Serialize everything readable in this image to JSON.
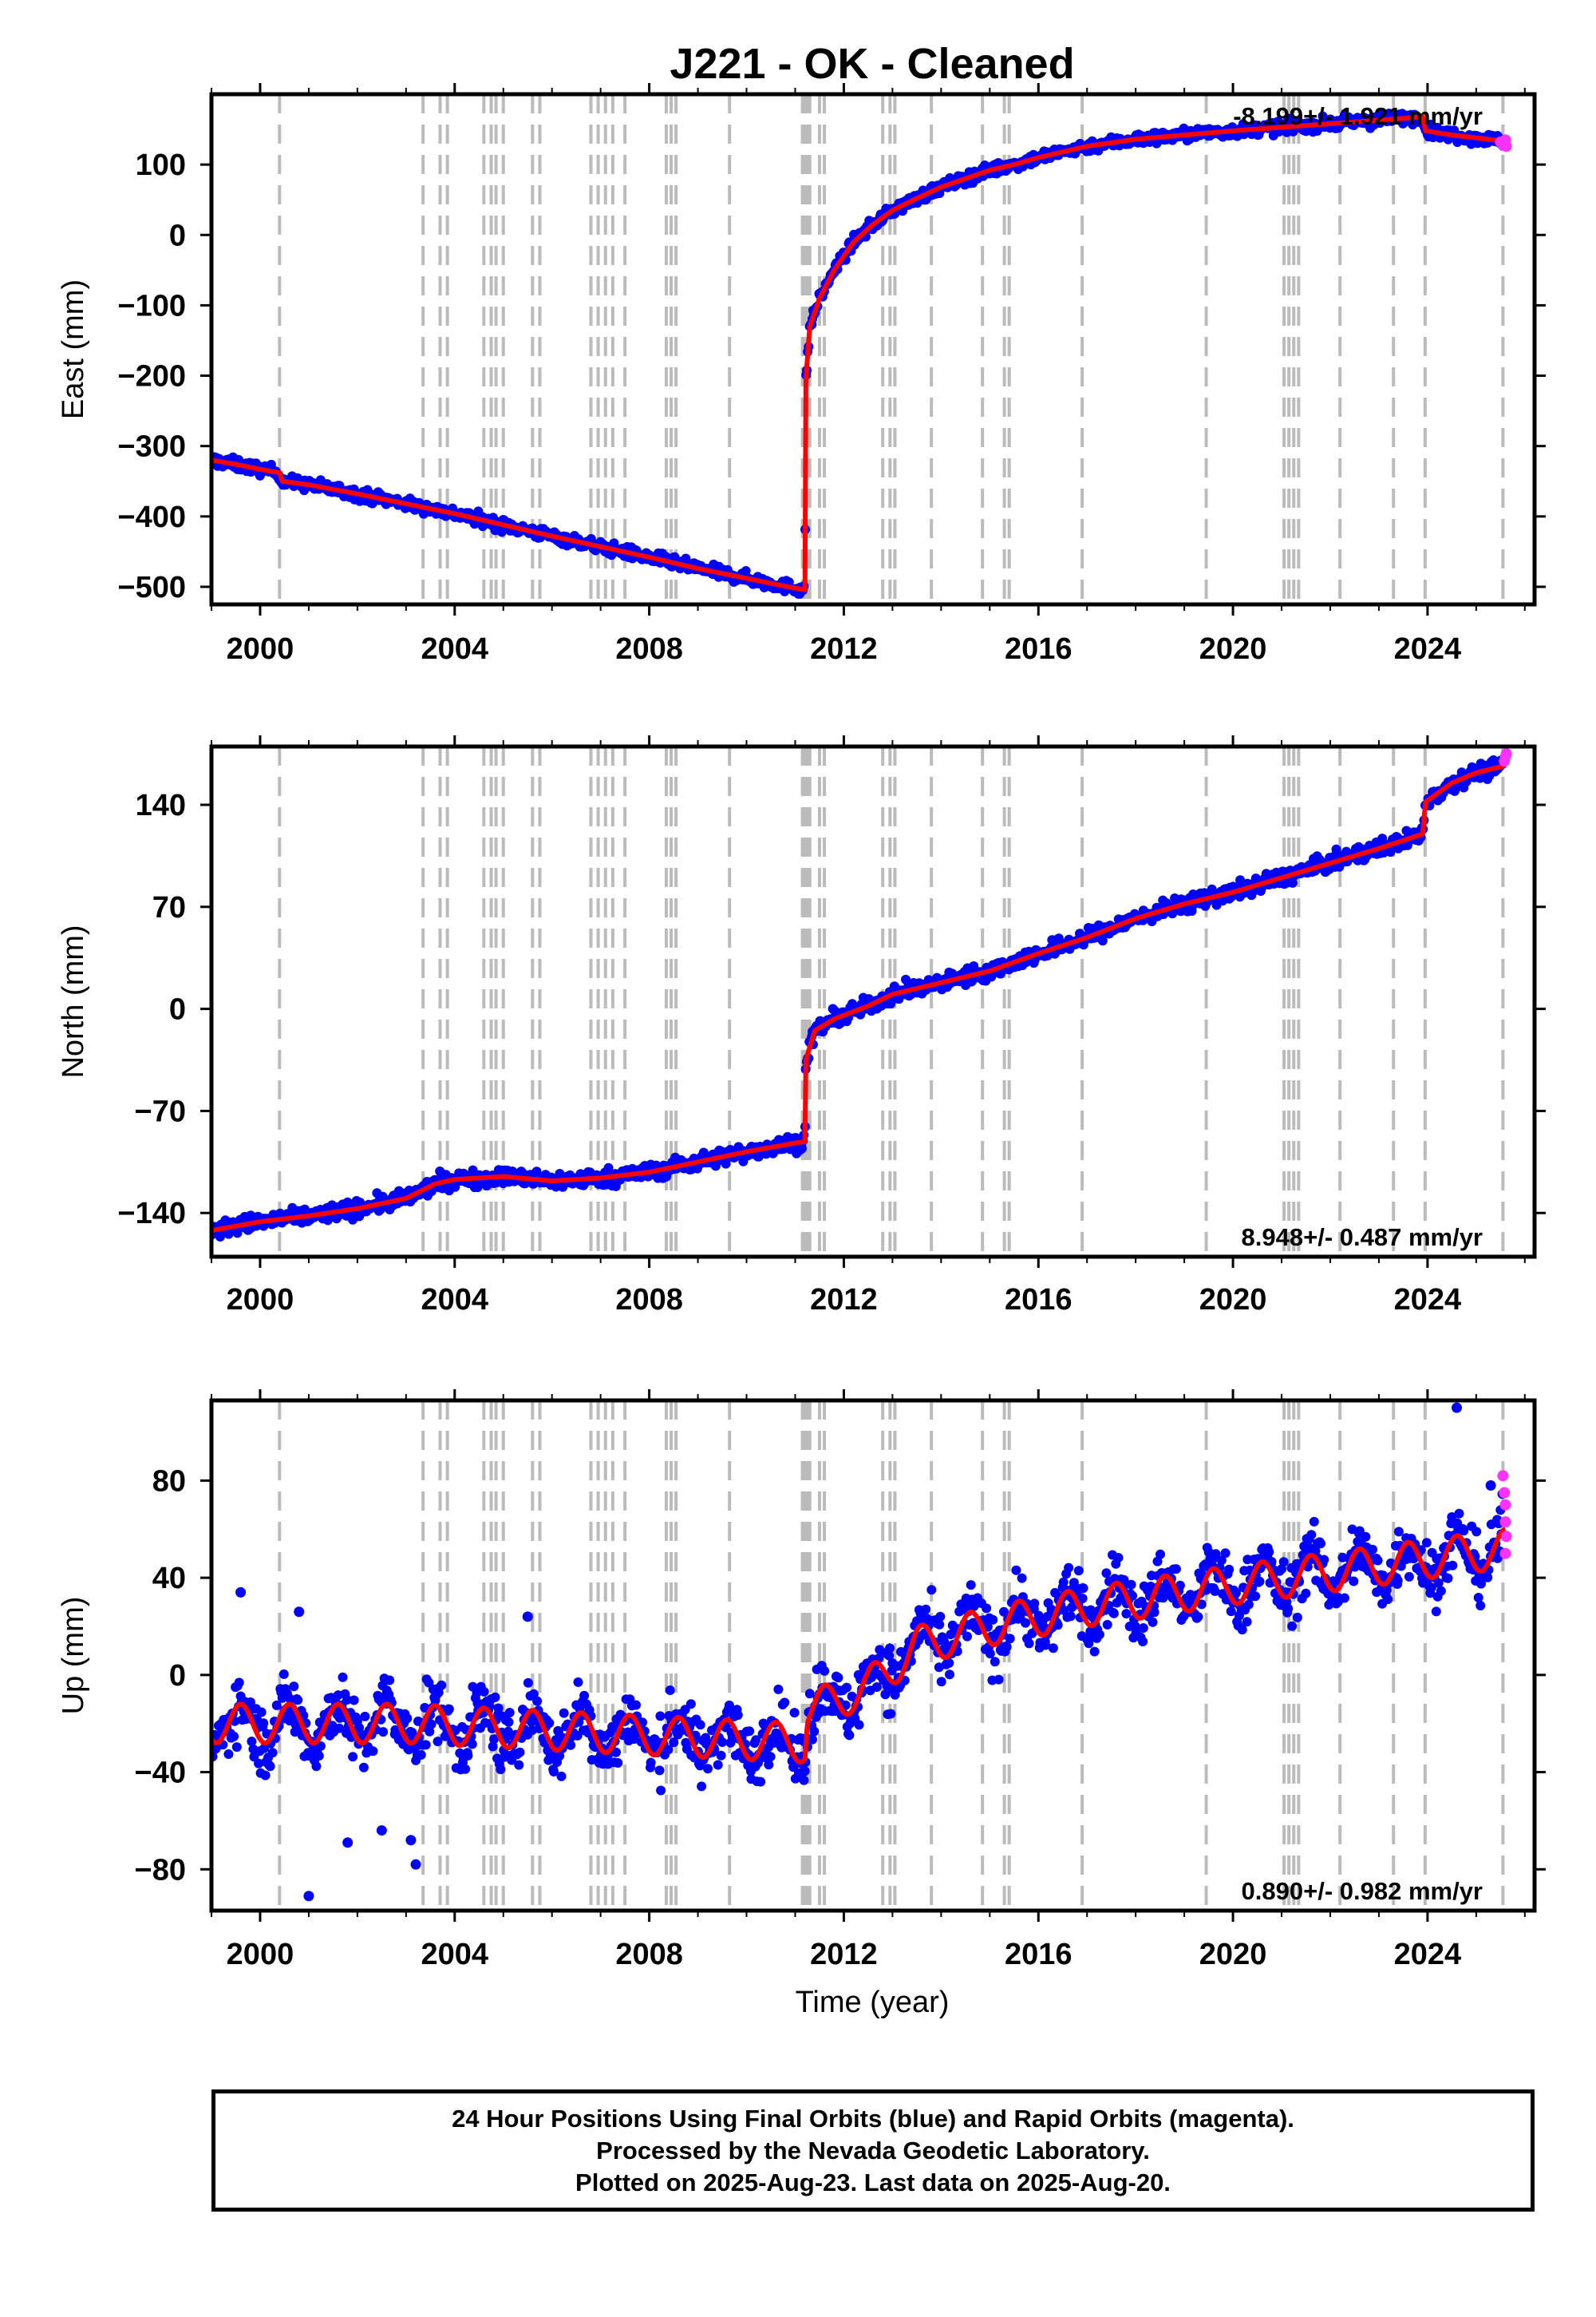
{
  "chart_data": {
    "type": "scatter",
    "title": "J221  - OK - Cleaned",
    "xlabel": "Time (year)",
    "x_ticks": [
      2000,
      2004,
      2008,
      2012,
      2016,
      2020,
      2024
    ],
    "xlim": [
      1999.0,
      2026.2
    ],
    "series_legend": [
      "24 Hour Positions Using Final Orbits (blue)",
      "Rapid Orbits (magenta)"
    ],
    "colors": {
      "final": "#0000ff",
      "rapid": "#ff33ff",
      "model": "#ff0000",
      "event_lines": "#bbbbbb"
    },
    "event_lines": [
      2000.4,
      2003.35,
      2003.7,
      2003.85,
      2004.6,
      2004.75,
      2004.85,
      2005.0,
      2005.6,
      2005.75,
      2006.8,
      2006.95,
      2007.1,
      2007.25,
      2007.5,
      2008.35,
      2008.45,
      2008.55,
      2009.65,
      2011.15,
      2011.2,
      2011.25,
      2011.3,
      2011.5,
      2011.6,
      2012.8,
      2012.95,
      2013.05,
      2013.8,
      2014.85,
      2015.3,
      2015.4,
      2016.9,
      2019.45,
      2021.05,
      2021.15,
      2021.25,
      2021.35,
      2022.2,
      2023.3,
      2023.95,
      2025.55
    ],
    "panels": [
      {
        "name": "east",
        "ylabel": "East (mm)",
        "ylim": [
          -525,
          200
        ],
        "y_ticks": [
          -500,
          -400,
          -300,
          -200,
          -100,
          0,
          100
        ],
        "y_tick_labels": [
          "−500",
          "−400",
          "−300",
          "−200",
          "−100",
          "0",
          "100"
        ],
        "rate_text": "-8.199+/- 1.921 mm/yr",
        "rate_position": "top-right",
        "scatter_spread_mm": 6,
        "model_points": [
          [
            1999.0,
            -320
          ],
          [
            1999.5,
            -326
          ],
          [
            2000.0,
            -333
          ],
          [
            2000.4,
            -338
          ],
          [
            2000.45,
            -350
          ],
          [
            2001.0,
            -355
          ],
          [
            2002.0,
            -368
          ],
          [
            2003.0,
            -382
          ],
          [
            2004.0,
            -396
          ],
          [
            2005.0,
            -412
          ],
          [
            2006.0,
            -428
          ],
          [
            2007.0,
            -443
          ],
          [
            2008.0,
            -458
          ],
          [
            2009.0,
            -474
          ],
          [
            2010.0,
            -488
          ],
          [
            2011.0,
            -502
          ],
          [
            2011.2,
            -504
          ],
          [
            2011.22,
            -205
          ],
          [
            2011.3,
            -130
          ],
          [
            2011.5,
            -90
          ],
          [
            2011.8,
            -50
          ],
          [
            2012.2,
            -10
          ],
          [
            2012.6,
            15
          ],
          [
            2013.0,
            35
          ],
          [
            2013.5,
            52
          ],
          [
            2014.0,
            68
          ],
          [
            2014.5,
            80
          ],
          [
            2015.0,
            92
          ],
          [
            2015.5,
            100
          ],
          [
            2016.0,
            110
          ],
          [
            2016.5,
            118
          ],
          [
            2017.0,
            126
          ],
          [
            2018.0,
            136
          ],
          [
            2019.0,
            142
          ],
          [
            2020.0,
            148
          ],
          [
            2021.0,
            153
          ],
          [
            2022.0,
            158
          ],
          [
            2023.0,
            163
          ],
          [
            2023.9,
            168
          ],
          [
            2023.96,
            148
          ],
          [
            2024.5,
            142
          ],
          [
            2025.0,
            138
          ],
          [
            2025.6,
            133
          ]
        ],
        "rapid_points": [
          [
            2025.5,
            132
          ],
          [
            2025.55,
            128
          ],
          [
            2025.6,
            135
          ],
          [
            2025.62,
            126
          ],
          [
            2025.58,
            130
          ]
        ]
      },
      {
        "name": "north",
        "ylabel": "North (mm)",
        "ylim": [
          -170,
          180
        ],
        "y_ticks": [
          -140,
          -70,
          0,
          70,
          140
        ],
        "y_tick_labels": [
          "−140",
          "−70",
          "0",
          "70",
          "140"
        ],
        "rate_text": "8.948+/- 0.487 mm/yr",
        "rate_position": "bottom-right",
        "scatter_spread_mm": 4,
        "model_points": [
          [
            1999.0,
            -152
          ],
          [
            2000.0,
            -146
          ],
          [
            2001.0,
            -142
          ],
          [
            2002.0,
            -137
          ],
          [
            2003.0,
            -130
          ],
          [
            2003.6,
            -120
          ],
          [
            2004.0,
            -117
          ],
          [
            2005.0,
            -115
          ],
          [
            2006.0,
            -118
          ],
          [
            2007.0,
            -116
          ],
          [
            2008.0,
            -112
          ],
          [
            2009.0,
            -105
          ],
          [
            2010.0,
            -98
          ],
          [
            2011.0,
            -92
          ],
          [
            2011.2,
            -91
          ],
          [
            2011.22,
            -35
          ],
          [
            2011.4,
            -15
          ],
          [
            2011.8,
            -7
          ],
          [
            2012.5,
            2
          ],
          [
            2013.0,
            10
          ],
          [
            2014.0,
            18
          ],
          [
            2015.0,
            26
          ],
          [
            2016.0,
            38
          ],
          [
            2017.0,
            49
          ],
          [
            2018.0,
            62
          ],
          [
            2019.0,
            72
          ],
          [
            2020.0,
            80
          ],
          [
            2021.0,
            90
          ],
          [
            2022.0,
            100
          ],
          [
            2023.0,
            110
          ],
          [
            2023.9,
            120
          ],
          [
            2023.96,
            142
          ],
          [
            2024.5,
            155
          ],
          [
            2025.0,
            162
          ],
          [
            2025.6,
            167
          ]
        ],
        "rapid_points": [
          [
            2025.58,
            170
          ],
          [
            2025.6,
            173
          ],
          [
            2025.62,
            175
          ]
        ]
      },
      {
        "name": "up",
        "ylabel": "Up (mm)",
        "ylim": [
          -97,
          113
        ],
        "y_ticks": [
          -80,
          -40,
          0,
          40,
          80
        ],
        "y_tick_labels": [
          "−80",
          "−40",
          "0",
          "40",
          "80"
        ],
        "rate_text": "0.890+/- 0.982 mm/yr",
        "rate_position": "bottom-right",
        "scatter_spread_mm": 9,
        "model_trend": [
          [
            1999.0,
            -20
          ],
          [
            2003.0,
            -20
          ],
          [
            2011.2,
            -28
          ],
          [
            2011.25,
            -15
          ],
          [
            2012.5,
            -5
          ],
          [
            2013.5,
            12
          ],
          [
            2015.0,
            20
          ],
          [
            2017.0,
            28
          ],
          [
            2020.0,
            37
          ],
          [
            2023.0,
            45
          ],
          [
            2025.6,
            52
          ]
        ],
        "seasonal_amplitude_mm": 8,
        "outliers": [
          [
            1999.6,
            34
          ],
          [
            2000.8,
            26
          ],
          [
            2001.0,
            -91
          ],
          [
            2001.8,
            -69
          ],
          [
            2002.5,
            -64
          ],
          [
            2003.2,
            -78
          ],
          [
            2003.1,
            -68
          ],
          [
            2005.5,
            24
          ],
          [
            2024.6,
            110
          ],
          [
            2025.3,
            78
          ]
        ],
        "rapid_points": [
          [
            2025.55,
            82
          ],
          [
            2025.58,
            75
          ],
          [
            2025.6,
            70
          ],
          [
            2025.6,
            63
          ],
          [
            2025.62,
            57
          ],
          [
            2025.6,
            50
          ]
        ]
      }
    ],
    "footer_lines": [
      "24 Hour Positions Using Final Orbits (blue) and Rapid Orbits (magenta).",
      "Processed by the Nevada Geodetic Laboratory.",
      "Plotted on 2025-Aug-23. Last data on 2025-Aug-20."
    ]
  }
}
